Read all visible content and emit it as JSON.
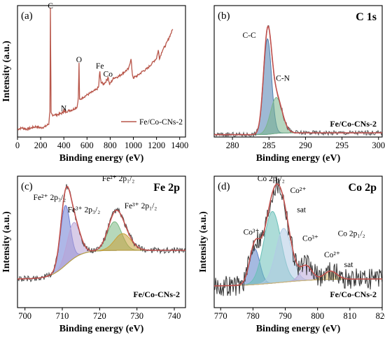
{
  "figure": {
    "panels": [
      {
        "id": "a",
        "panel_label": "(a)",
        "title": "",
        "corner_text": "",
        "xlabel": "Binding energy (eV)",
        "ylabel": "Intensity (a.u.)",
        "xlim": [
          0,
          1450
        ],
        "ticks": [
          0,
          200,
          400,
          600,
          800,
          1000,
          1200,
          1400
        ],
        "colors": {
          "survey": "#b8564a"
        },
        "peak_labels": [
          {
            "text": "C",
            "x": 284.8,
            "y": 0.98
          },
          {
            "text": "N",
            "x": 399,
            "y": 0.2
          },
          {
            "text": "O",
            "x": 531,
            "y": 0.57
          },
          {
            "text": "Fe",
            "x": 711,
            "y": 0.52
          },
          {
            "text": "Co",
            "x": 781,
            "y": 0.46
          }
        ],
        "legend": {
          "entries": [
            "Fe/Co-CNs-2"
          ],
          "position": "lower-right"
        }
      },
      {
        "id": "b",
        "panel_label": "(b)",
        "title": "C 1s",
        "corner_text": "Fe/Co-CNs-2",
        "xlabel": "Binding energy (eV)",
        "ylabel": "",
        "xlim": [
          277.5,
          300.5
        ],
        "ticks": [
          280,
          285,
          290,
          295,
          300
        ],
        "peak_labels": [
          {
            "text": "C-C",
            "x": 282.3,
            "y": 0.83
          },
          {
            "text": "C-N",
            "x": 286.9,
            "y": 0.47
          }
        ],
        "colors": {
          "raw": "#555555",
          "fit": "#c0504d",
          "background": "#a9a9a9",
          "C-C": "#4f7fb0",
          "C-N": "#79b58b"
        }
      },
      {
        "id": "c",
        "panel_label": "(c)",
        "title": "Fe 2p",
        "corner_text": "Fe/Co-CNs-2",
        "xlabel": "Binding energy (eV)",
        "ylabel": "Intensity (a.u.)",
        "xlim": [
          698,
          743
        ],
        "ticks": [
          700,
          710,
          720,
          730,
          740
        ],
        "peak_labels": [
          {
            "text": "Fe²⁺ 2p₃/₂",
            "x": 706.6,
            "y": 0.9
          },
          {
            "text": "Fe³⁺ 2p₃/₂",
            "x": 715.8,
            "y": 0.8
          },
          {
            "text": "Fe²⁺ 2p₁/₂",
            "x": 725,
            "y": 1.06
          },
          {
            "text": "Fe³⁺ 2p₁/₂",
            "x": 731,
            "y": 0.83
          }
        ],
        "colors": {
          "raw": "#444444",
          "fit": "#c0504d",
          "background": "#6aa2c4",
          "Fe2+ 2p3/2": "#6b7bd4",
          "Fe3+ 2p3/2": "#b8a3d6",
          "Fe2+ 2p1/2": "#7ab882",
          "Fe3+ 2p1/2": "#c9a03a"
        }
      },
      {
        "id": "d",
        "panel_label": "(d)",
        "title": "Co 2p",
        "corner_text": "Fe/Co-CNs-2",
        "xlabel": "Binding energy (eV)",
        "ylabel": "Intensity (a.u.)",
        "xlim": [
          768,
          820
        ],
        "ticks": [
          770,
          780,
          790,
          800,
          810,
          820
        ],
        "peak_labels": [
          {
            "text": "Co 2p₃/₂",
            "x": 785.6,
            "y": 1.06
          },
          {
            "text": "Co²⁺",
            "x": 794,
            "y": 0.96
          },
          {
            "text": "sat",
            "x": 795,
            "y": 0.8
          },
          {
            "text": "Co³⁺",
            "x": 779.5,
            "y": 0.61
          },
          {
            "text": "Co³⁺",
            "x": 797.8,
            "y": 0.56
          },
          {
            "text": "Co 2p₁/₂",
            "x": 810.5,
            "y": 0.6
          },
          {
            "text": "Co²⁺",
            "x": 804.5,
            "y": 0.42
          },
          {
            "text": "sat",
            "x": 809.6,
            "y": 0.34
          }
        ],
        "colors": {
          "raw": "#333333",
          "fit": "#c0504d",
          "background": "#a4a23a",
          "Co3+ 2p3/2": "#5b82c8",
          "Co2+ 2p3/2": "#6ac0b8",
          "sat": "#b0cbe4",
          "Co3+ 2p1/2": "#b9a7d9",
          "Co2+ 2p1/2": "#d1b46a"
        }
      }
    ]
  },
  "chart_data": [
    {
      "type": "line",
      "panel": "a",
      "xlabel": "Binding energy (eV)",
      "ylabel": "Intensity (a.u.)",
      "xlim": [
        0,
        1450
      ],
      "ylim": [
        0,
        1
      ],
      "legend": [
        "Fe/Co-CNs-2"
      ],
      "series": [
        {
          "name": "Fe/Co-CNs-2",
          "x": [
            0,
            40,
            80,
            120,
            160,
            200,
            240,
            270,
            280,
            284,
            286,
            290,
            300,
            340,
            380,
            395,
            399,
            405,
            440,
            480,
            515,
            525,
            531,
            536,
            560,
            600,
            640,
            680,
            700,
            706,
            711,
            716,
            722,
            740,
            760,
            775,
            781,
            787,
            795,
            830,
            870,
            900,
            930,
            960,
            980,
            990,
            1000,
            1040,
            1080,
            1120,
            1160,
            1200,
            1215,
            1225,
            1235,
            1250,
            1280,
            1300,
            1320,
            1340
          ],
          "y": [
            0.06,
            0.07,
            0.06,
            0.07,
            0.08,
            0.07,
            0.08,
            0.1,
            0.2,
            0.98,
            0.7,
            0.18,
            0.17,
            0.17,
            0.18,
            0.19,
            0.21,
            0.19,
            0.2,
            0.21,
            0.23,
            0.3,
            0.56,
            0.28,
            0.3,
            0.32,
            0.34,
            0.36,
            0.38,
            0.46,
            0.5,
            0.44,
            0.42,
            0.4,
            0.42,
            0.44,
            0.46,
            0.43,
            0.4,
            0.45,
            0.46,
            0.48,
            0.5,
            0.52,
            0.6,
            0.48,
            0.45,
            0.47,
            0.5,
            0.52,
            0.56,
            0.6,
            0.66,
            0.6,
            0.62,
            0.66,
            0.7,
            0.74,
            0.78,
            0.82
          ]
        }
      ]
    },
    {
      "type": "line",
      "panel": "b",
      "title": "C 1s",
      "xlabel": "Binding energy (eV)",
      "xlim": [
        277.5,
        300.5
      ],
      "ylim": [
        0,
        1.1
      ],
      "peaks": [
        {
          "name": "C-C",
          "center": 284.8,
          "height": 0.8,
          "width": 0.55
        },
        {
          "name": "C-N",
          "center": 286.0,
          "height": 0.3,
          "width": 0.8
        }
      ],
      "background": {
        "low": 0.02,
        "high": 0.035,
        "step_center": 285.5,
        "step_width": 0.5
      },
      "raw_noise": 0.02
    },
    {
      "type": "line",
      "panel": "c",
      "title": "Fe 2p",
      "xlabel": "Binding energy (eV)",
      "ylabel": "Intensity (a.u.)",
      "xlim": [
        698,
        743
      ],
      "ylim": [
        0,
        1.1
      ],
      "peaks": [
        {
          "name": "Fe2+ 2p3/2",
          "center": 710.8,
          "height": 0.5,
          "width": 1.3
        },
        {
          "name": "Fe3+ 2p3/2",
          "center": 713.0,
          "height": 0.3,
          "width": 1.7
        },
        {
          "name": "Fe2+ 2p1/2",
          "center": 724.0,
          "height": 0.24,
          "width": 1.9
        },
        {
          "name": "Fe3+ 2p1/2",
          "center": 726.2,
          "height": 0.14,
          "width": 2.2
        }
      ],
      "background": {
        "low": 0.24,
        "high": 0.48,
        "step_center": 711,
        "step_width": 2.2
      },
      "raw_noise": 0.025
    },
    {
      "type": "line",
      "panel": "d",
      "title": "Co 2p",
      "xlabel": "Binding energy (eV)",
      "ylabel": "Intensity (a.u.)",
      "xlim": [
        768,
        820
      ],
      "ylim": [
        0,
        1.1
      ],
      "peaks": [
        {
          "name": "Co3+ 2p3/2",
          "center": 780.5,
          "height": 0.3,
          "width": 1.6
        },
        {
          "name": "Co2+ 2p3/2",
          "center": 786.0,
          "height": 0.6,
          "width": 2.6
        },
        {
          "name": "sat",
          "center": 789.5,
          "height": 0.45,
          "width": 2.4
        },
        {
          "name": "Co3+ 2p1/2",
          "center": 796.5,
          "height": 0.12,
          "width": 1.8
        },
        {
          "name": "Co2+ 2p1/2",
          "center": 804.0,
          "height": 0.07,
          "width": 2.0
        }
      ],
      "background": {
        "low": 0.18,
        "high": 0.24,
        "step_center": 788,
        "step_width": 6
      },
      "raw_noise": 0.09
    }
  ]
}
